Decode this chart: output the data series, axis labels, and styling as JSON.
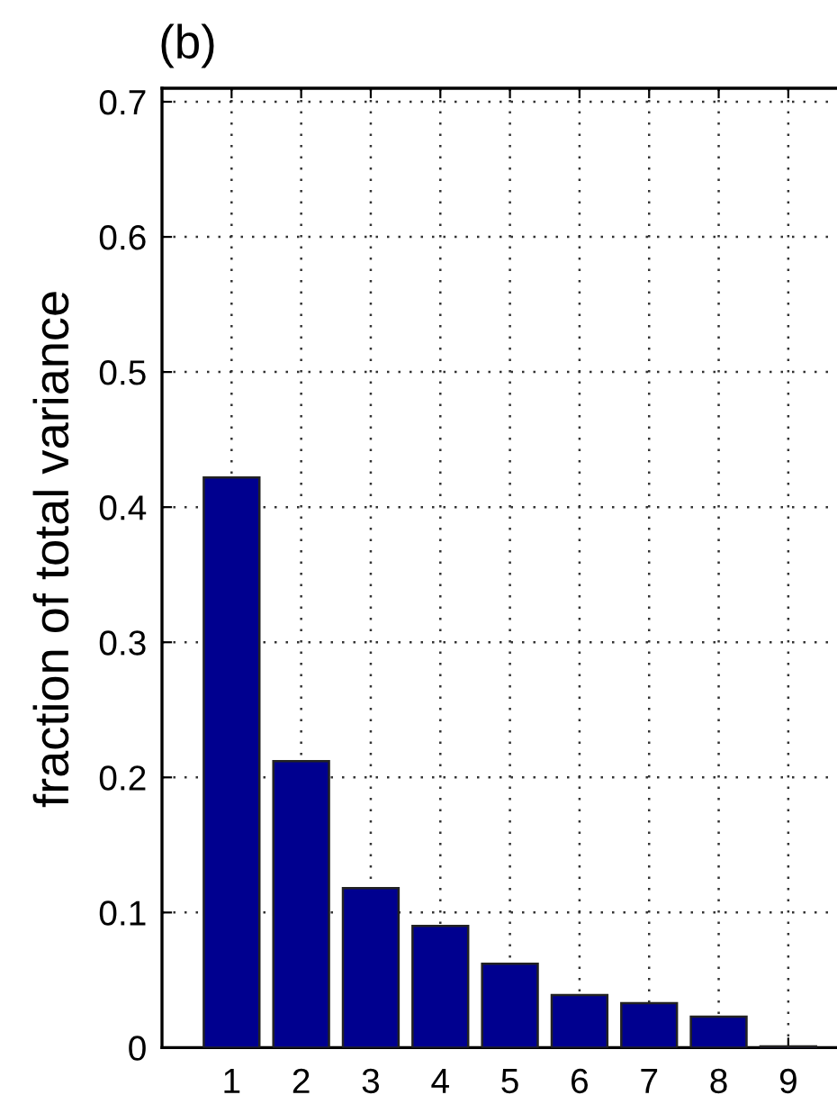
{
  "chart_data": {
    "type": "bar",
    "title": "(b)",
    "ylabel": "fraction of total variance",
    "x": [
      1,
      2,
      3,
      4,
      5,
      6,
      7,
      8,
      9
    ],
    "values": [
      0.422,
      0.212,
      0.118,
      0.09,
      0.062,
      0.039,
      0.033,
      0.023,
      0.001
    ],
    "color": "#00008f",
    "xlim": [
      0,
      9.7
    ],
    "xticks": [
      1,
      2,
      3,
      4,
      5,
      6,
      7,
      8,
      9
    ],
    "ylim": [
      0,
      0.71
    ],
    "yticks": [
      0,
      0.1,
      0.2,
      0.3,
      0.4,
      0.5,
      0.6,
      0.7
    ],
    "grid": true,
    "line_style": "dotted"
  }
}
